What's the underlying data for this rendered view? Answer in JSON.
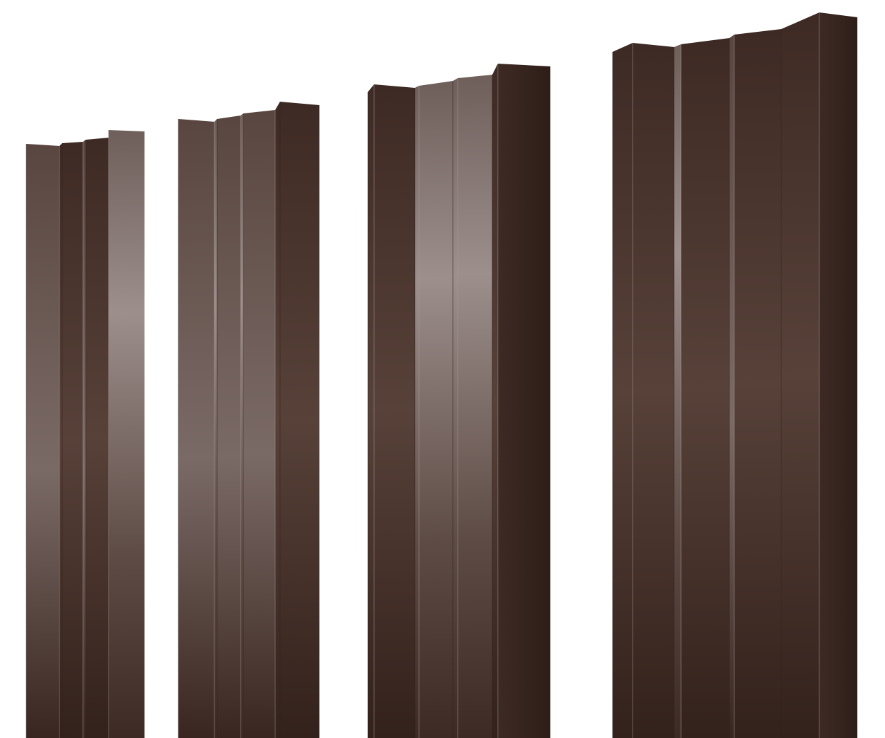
{
  "image": {
    "subject": "fence-pickets",
    "picket_count": 4,
    "colors": {
      "background": "#ffffff",
      "brown_dark": "#2e1d18",
      "brown_mid": "#4a342c",
      "brown_light": "#7a6a66",
      "highlight": "#9c8f8c"
    }
  }
}
